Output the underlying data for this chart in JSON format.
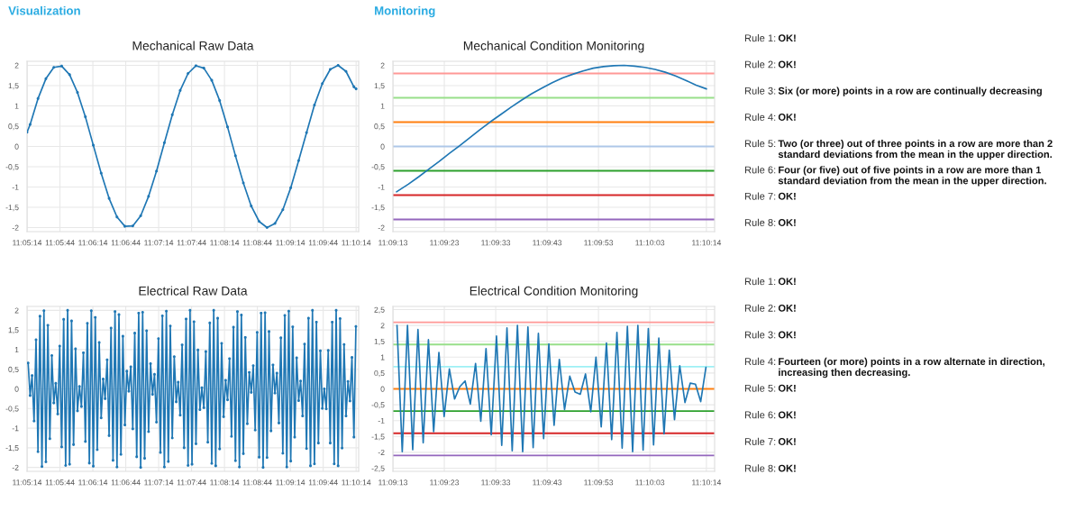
{
  "chart_data": [
    {
      "type": "line",
      "title": "Mechanical Raw Data",
      "annotations": [
        "Visualization"
      ],
      "grid": true,
      "marker": "circle",
      "xlim": [
        11.087222,
        11.1712
      ],
      "ylim": [
        -2.1,
        2.1
      ],
      "xticks": [
        {
          "value": 11.087222,
          "label": "11:05:14"
        },
        {
          "value": 11.095556,
          "label": "11:05:44"
        },
        {
          "value": 11.103889,
          "label": "11:06:14"
        },
        {
          "value": 11.112222,
          "label": "11:06:44"
        },
        {
          "value": 11.120556,
          "label": "11:07:14"
        },
        {
          "value": 11.128889,
          "label": "11:07:44"
        },
        {
          "value": 11.137222,
          "label": "11:08:14"
        },
        {
          "value": 11.145556,
          "label": "11:08:44"
        },
        {
          "value": 11.153889,
          "label": "11:09:14"
        },
        {
          "value": 11.162222,
          "label": "11:09:44"
        },
        {
          "value": 11.170556,
          "label": "11:10:14"
        }
      ],
      "yticks": [
        {
          "value": -2,
          "label": "-2"
        },
        {
          "value": -1.5,
          "label": "-1,5"
        },
        {
          "value": -1,
          "label": "-1"
        },
        {
          "value": -0.5,
          "label": "-0,5"
        },
        {
          "value": 0,
          "label": "0"
        },
        {
          "value": 0.5,
          "label": "0,5"
        },
        {
          "value": 1,
          "label": "1"
        },
        {
          "value": 1.5,
          "label": "1,5"
        },
        {
          "value": 2,
          "label": "2"
        }
      ],
      "series": [
        {
          "color": "#1f77b4",
          "x": [
            11.087222,
            11.088,
            11.09,
            11.092,
            11.094,
            11.096,
            11.098,
            11.1,
            11.102,
            11.104,
            11.106,
            11.108,
            11.11,
            11.112,
            11.114,
            11.116,
            11.118,
            11.12,
            11.122,
            11.124,
            11.126,
            11.128,
            11.13,
            11.132,
            11.134,
            11.136,
            11.138,
            11.14,
            11.142,
            11.144,
            11.146,
            11.148,
            11.15,
            11.152,
            11.154,
            11.156,
            11.158,
            11.16,
            11.162,
            11.164,
            11.166,
            11.168,
            11.17,
            11.170556
          ],
          "values": [
            0.35,
            0.54,
            1.18,
            1.67,
            1.95,
            1.98,
            1.77,
            1.33,
            0.73,
            0.03,
            -0.66,
            -1.28,
            -1.74,
            -1.97,
            -1.96,
            -1.71,
            -1.23,
            -0.61,
            0.09,
            0.78,
            1.38,
            1.8,
            1.99,
            1.93,
            1.63,
            1.13,
            0.48,
            -0.23,
            -0.9,
            -1.47,
            -1.85,
            -2.0,
            -1.9,
            -1.56,
            -1.02,
            -0.35,
            0.34,
            1.02,
            1.55,
            1.9,
            2.0,
            1.85,
            1.47,
            1.42
          ]
        }
      ]
    },
    {
      "type": "line",
      "title": "Mechanical Condition Monitoring",
      "annotations": [
        "Monitoring"
      ],
      "grid": true,
      "xlim": [
        11.153611,
        11.171
      ],
      "ylim": [
        -2.1,
        2.1
      ],
      "xticks": [
        {
          "value": 11.153611,
          "label": "11:09:13"
        },
        {
          "value": 11.156389,
          "label": "11:09:23"
        },
        {
          "value": 11.159167,
          "label": "11:09:33"
        },
        {
          "value": 11.161944,
          "label": "11:09:43"
        },
        {
          "value": 11.164722,
          "label": "11:09:53"
        },
        {
          "value": 11.1675,
          "label": "11:10:03"
        },
        {
          "value": 11.170556,
          "label": "11:10:14"
        }
      ],
      "yticks": [
        {
          "value": -2,
          "label": "-2"
        },
        {
          "value": -1.5,
          "label": "-1,5"
        },
        {
          "value": -1,
          "label": "-1"
        },
        {
          "value": -0.5,
          "label": "-0,5"
        },
        {
          "value": 0,
          "label": "0"
        },
        {
          "value": 0.5,
          "label": "0,5"
        },
        {
          "value": 1,
          "label": "1"
        },
        {
          "value": 1.5,
          "label": "1,5"
        },
        {
          "value": 2,
          "label": "2"
        }
      ],
      "ref_lines": [
        {
          "axis": "y",
          "value": 1.8,
          "color": "#ff9896"
        },
        {
          "axis": "y",
          "value": 1.2,
          "color": "#98df8a"
        },
        {
          "axis": "y",
          "value": 0.6,
          "color": "#ff7f0e"
        },
        {
          "axis": "y",
          "value": 0,
          "color": "#aec7e8"
        },
        {
          "axis": "y",
          "value": -0.6,
          "color": "#2ca02c"
        },
        {
          "axis": "y",
          "value": -1.2,
          "color": "#d62728"
        },
        {
          "axis": "y",
          "value": -1.8,
          "color": "#9467bd"
        }
      ],
      "series": [
        {
          "color": "#1f77b4",
          "x": [
            11.153806,
            11.154444,
            11.155,
            11.155556,
            11.156111,
            11.156667,
            11.157222,
            11.157778,
            11.158333,
            11.158889,
            11.159444,
            11.16,
            11.160556,
            11.161111,
            11.161667,
            11.162222,
            11.162778,
            11.163333,
            11.163889,
            11.164444,
            11.165,
            11.165556,
            11.166111,
            11.166667,
            11.167222,
            11.167778,
            11.168333,
            11.168889,
            11.169444,
            11.17,
            11.170556
          ],
          "values": [
            -1.12,
            -0.93,
            -0.75,
            -0.56,
            -0.37,
            -0.17,
            0.02,
            0.22,
            0.42,
            0.61,
            0.79,
            0.97,
            1.14,
            1.3,
            1.44,
            1.57,
            1.69,
            1.78,
            1.86,
            1.93,
            1.97,
            1.99,
            2.0,
            1.98,
            1.95,
            1.9,
            1.83,
            1.74,
            1.63,
            1.51,
            1.42
          ]
        }
      ]
    },
    {
      "type": "line",
      "title": "Electrical Raw Data",
      "grid": true,
      "marker": "circle",
      "xlim": [
        11.087222,
        11.1712
      ],
      "ylim": [
        -2.1,
        2.1
      ],
      "xticks": [
        {
          "value": 11.087222,
          "label": "11:05:14"
        },
        {
          "value": 11.095556,
          "label": "11:05:44"
        },
        {
          "value": 11.103889,
          "label": "11:06:14"
        },
        {
          "value": 11.112222,
          "label": "11:06:44"
        },
        {
          "value": 11.120556,
          "label": "11:07:14"
        },
        {
          "value": 11.128889,
          "label": "11:07:44"
        },
        {
          "value": 11.137222,
          "label": "11:08:14"
        },
        {
          "value": 11.145556,
          "label": "11:08:44"
        },
        {
          "value": 11.153889,
          "label": "11:09:14"
        },
        {
          "value": 11.162222,
          "label": "11:09:44"
        },
        {
          "value": 11.170556,
          "label": "11:10:14"
        }
      ],
      "yticks": [
        {
          "value": -2,
          "label": "-2"
        },
        {
          "value": -1.5,
          "label": "-1,5"
        },
        {
          "value": -1,
          "label": "-1"
        },
        {
          "value": -0.5,
          "label": "-0,5"
        },
        {
          "value": 0,
          "label": "0"
        },
        {
          "value": 0.5,
          "label": "0,5"
        },
        {
          "value": 1,
          "label": "1"
        },
        {
          "value": 1.5,
          "label": "1,5"
        },
        {
          "value": 2,
          "label": "2"
        }
      ],
      "series": [
        {
          "color": "#1f77b4",
          "x": [
            11.0875,
            11.088,
            11.0885,
            11.089,
            11.0895,
            11.09,
            11.0905,
            11.091,
            11.0915,
            11.092,
            11.0925,
            11.093,
            11.0935,
            11.094,
            11.0945,
            11.095,
            11.0955,
            11.096,
            11.0965,
            11.097,
            11.0975,
            11.098,
            11.0985,
            11.099,
            11.0995,
            11.1,
            11.1005,
            11.101,
            11.1015,
            11.102,
            11.1025,
            11.103,
            11.1035,
            11.104,
            11.1045,
            11.105,
            11.1055,
            11.106,
            11.1065,
            11.107,
            11.1075,
            11.108,
            11.1085,
            11.109,
            11.1095,
            11.11,
            11.1105,
            11.111,
            11.1115,
            11.112,
            11.1125,
            11.113,
            11.1135,
            11.114,
            11.1145,
            11.115,
            11.1155,
            11.116,
            11.1165,
            11.117,
            11.1175,
            11.118,
            11.1185,
            11.119,
            11.1195,
            11.12,
            11.1205,
            11.121,
            11.1215,
            11.122,
            11.1225,
            11.123,
            11.1235,
            11.124,
            11.1245,
            11.125,
            11.1255,
            11.126,
            11.1265,
            11.127,
            11.1275,
            11.128,
            11.1285,
            11.129,
            11.1295,
            11.13,
            11.1305,
            11.131,
            11.1315,
            11.132,
            11.1325,
            11.133,
            11.1335,
            11.134,
            11.1345,
            11.135,
            11.1355,
            11.136,
            11.1365,
            11.137,
            11.1375,
            11.138,
            11.1385,
            11.139,
            11.1395,
            11.14,
            11.1405,
            11.141,
            11.1415,
            11.142,
            11.1425,
            11.143,
            11.1435,
            11.144,
            11.1445,
            11.145,
            11.1455,
            11.146,
            11.1465,
            11.147,
            11.1475,
            11.148,
            11.1485,
            11.149,
            11.1495,
            11.15,
            11.1505,
            11.151,
            11.1515,
            11.152,
            11.1525,
            11.153,
            11.1535,
            11.154,
            11.1545,
            11.155,
            11.1555,
            11.156,
            11.1565,
            11.157,
            11.1575,
            11.158,
            11.1585,
            11.159,
            11.1595,
            11.16,
            11.1605,
            11.161,
            11.1615,
            11.162,
            11.1625,
            11.163,
            11.1635,
            11.164,
            11.1645,
            11.165,
            11.1655,
            11.166,
            11.1665,
            11.167,
            11.1675,
            11.168,
            11.1685,
            11.169,
            11.1695,
            11.17,
            11.1705
          ],
          "values": [
            0.66,
            -0.17,
            0.34,
            -0.82,
            1.25,
            -1.6,
            1.85,
            -1.98,
            1.99,
            -1.86,
            1.62,
            -1.27,
            0.85,
            -0.36,
            0.14,
            -0.64,
            1.09,
            -1.48,
            1.77,
            -1.95,
            2.0,
            -1.92,
            1.73,
            -1.42,
            1.02,
            -0.56,
            0.06,
            -0.45,
            0.92,
            -1.34,
            1.67,
            -1.89,
            1.99,
            -1.97,
            1.82,
            -1.55,
            1.18,
            -0.74,
            0.25,
            -0.25,
            0.74,
            -1.19,
            1.55,
            -1.82,
            1.97,
            -1.99,
            1.89,
            -1.67,
            1.34,
            -0.92,
            0.45,
            -0.06,
            0.56,
            -1.02,
            1.42,
            -1.73,
            1.93,
            -2.0,
            1.95,
            -1.77,
            1.48,
            -1.09,
            0.64,
            -0.14,
            0.37,
            -0.85,
            1.28,
            -1.62,
            1.86,
            -1.99,
            1.98,
            -1.85,
            1.6,
            -1.25,
            0.82,
            -0.33,
            0.17,
            -0.67,
            1.12,
            -1.5,
            1.78,
            -1.95,
            2.0,
            -1.92,
            1.71,
            -1.4,
            0.99,
            -0.53,
            0.03,
            -0.48,
            0.95,
            -1.36,
            1.68,
            -1.9,
            2.0,
            -1.96,
            1.8,
            -1.53,
            1.16,
            -0.71,
            0.22,
            -0.28,
            0.77,
            -1.21,
            1.57,
            -1.83,
            1.97,
            -1.99,
            1.88,
            -1.65,
            1.31,
            -0.89,
            0.42,
            -0.09,
            0.59,
            -1.05,
            1.44,
            -1.74,
            1.93,
            -2.0,
            1.94,
            -1.75,
            1.46,
            -1.07,
            0.61,
            -0.11,
            0.4,
            -0.87,
            1.3,
            -1.64,
            1.87,
            -1.99,
            1.98,
            -1.84,
            1.58,
            -1.23,
            0.79,
            -0.3,
            0.2,
            -0.69,
            1.14,
            -1.52,
            1.8,
            -1.96,
            2.0,
            -1.91,
            1.7,
            -1.38,
            0.97,
            -0.5,
            0.0,
            -0.51,
            0.98,
            -1.38,
            1.7,
            -1.91,
            2.0,
            -1.96,
            1.79,
            -1.51,
            1.13,
            -0.69,
            0.19,
            -0.31,
            0.8,
            -1.23,
            1.59
          ]
        }
      ]
    },
    {
      "type": "line",
      "title": "Electrical Condition Monitoring",
      "grid": true,
      "xlim": [
        11.153611,
        11.171
      ],
      "ylim": [
        -2.6,
        2.6
      ],
      "xticks": [
        {
          "value": 11.153611,
          "label": "11:09:13"
        },
        {
          "value": 11.156389,
          "label": "11:09:23"
        },
        {
          "value": 11.159167,
          "label": "11:09:33"
        },
        {
          "value": 11.161944,
          "label": "11:09:43"
        },
        {
          "value": 11.164722,
          "label": "11:09:53"
        },
        {
          "value": 11.1675,
          "label": "11:10:03"
        },
        {
          "value": 11.170556,
          "label": "11:10:14"
        }
      ],
      "yticks": [
        {
          "value": -2.5,
          "label": "-2,5"
        },
        {
          "value": -2,
          "label": "-2"
        },
        {
          "value": -1.5,
          "label": "-1,5"
        },
        {
          "value": -1,
          "label": "-1"
        },
        {
          "value": -0.5,
          "label": "-0,5"
        },
        {
          "value": 0,
          "label": "0"
        },
        {
          "value": 0.5,
          "label": "0,5"
        },
        {
          "value": 1,
          "label": "1"
        },
        {
          "value": 1.5,
          "label": "1,5"
        },
        {
          "value": 2,
          "label": "2"
        },
        {
          "value": 2.5,
          "label": "2,5"
        }
      ],
      "ref_lines": [
        {
          "axis": "y",
          "value": 2.1,
          "color": "#ff9896"
        },
        {
          "axis": "y",
          "value": 1.4,
          "color": "#98df8a"
        },
        {
          "axis": "y",
          "value": 0.7,
          "color": "#9ef0f5"
        },
        {
          "axis": "y",
          "value": 0,
          "color": "#ff7f0e"
        },
        {
          "axis": "y",
          "value": -0.7,
          "color": "#2ca02c"
        },
        {
          "axis": "y",
          "value": -1.4,
          "color": "#d62728"
        },
        {
          "axis": "y",
          "value": -2.1,
          "color": "#9467bd"
        }
      ],
      "series": [
        {
          "color": "#1f77b4",
          "x": [
            11.153833,
            11.154116,
            11.154399,
            11.154682,
            11.154965,
            11.155248,
            11.155531,
            11.155814,
            11.156097,
            11.15638,
            11.156663,
            11.156946,
            11.157229,
            11.157512,
            11.157795,
            11.158078,
            11.158361,
            11.158644,
            11.158927,
            11.15921,
            11.159493,
            11.159776,
            11.160059,
            11.160342,
            11.160625,
            11.160908,
            11.161191,
            11.161474,
            11.161757,
            11.16204,
            11.162323,
            11.162606,
            11.162889,
            11.163172,
            11.163455,
            11.163738,
            11.164021,
            11.164304,
            11.164587,
            11.16487,
            11.165153,
            11.165436,
            11.165719,
            11.166002,
            11.166285,
            11.166568,
            11.166851,
            11.167134,
            11.167417,
            11.1677,
            11.167983,
            11.168266,
            11.168549,
            11.168832,
            11.169115,
            11.169398,
            11.169681,
            11.169964,
            11.170247,
            11.17053
          ],
          "values": [
            2.0,
            -1.98,
            2.0,
            -1.92,
            1.87,
            -1.7,
            1.55,
            -1.35,
            1.15,
            -0.87,
            0.63,
            -0.32,
            0.07,
            0.25,
            -0.48,
            0.8,
            -1.02,
            1.27,
            -1.45,
            1.67,
            -1.78,
            1.92,
            -1.95,
            2.0,
            -1.98,
            1.95,
            -1.85,
            1.75,
            -1.57,
            1.42,
            -1.15,
            0.93,
            -0.65,
            0.4,
            -0.1,
            -0.17,
            0.47,
            -0.72,
            1.0,
            -1.2,
            1.45,
            -1.6,
            1.78,
            -1.87,
            1.97,
            -1.98,
            2.0,
            -1.93,
            1.9,
            -1.77,
            1.6,
            -1.42,
            1.22,
            -0.97,
            0.73,
            -0.43,
            0.18,
            0.15,
            -0.4,
            0.68
          ]
        }
      ]
    },
    {
      "type": "other",
      "annotations": [
        "Rule 1:",
        "OK!",
        "Rule 2:",
        "OK!",
        "Rule 3:",
        "Six (or more) points in a row are continually decreasing",
        "Rule 4:",
        "OK!",
        "Rule 5:",
        "Two (or three) out of three points in a row are more than 2 standard deviations from the mean in the upper direction.",
        "Rule 6:",
        "Four (or five) out of five points in a row are more than 1 standard deviation from the mean in the upper direction.",
        "Rule 7:",
        "OK!",
        "Rule 8:",
        "OK!"
      ]
    },
    {
      "type": "other",
      "annotations": [
        "Rule 1:",
        "OK!",
        "Rule 2:",
        "OK!",
        "Rule 3:",
        "OK!",
        "Rule 4:",
        "Fourteen (or more) points in a row alternate in direction, increasing then decreasing.",
        "Rule 5:",
        "OK!",
        "Rule 6:",
        "OK!",
        "Rule 7:",
        "OK!",
        "Rule 8:",
        "OK!"
      ]
    }
  ]
}
